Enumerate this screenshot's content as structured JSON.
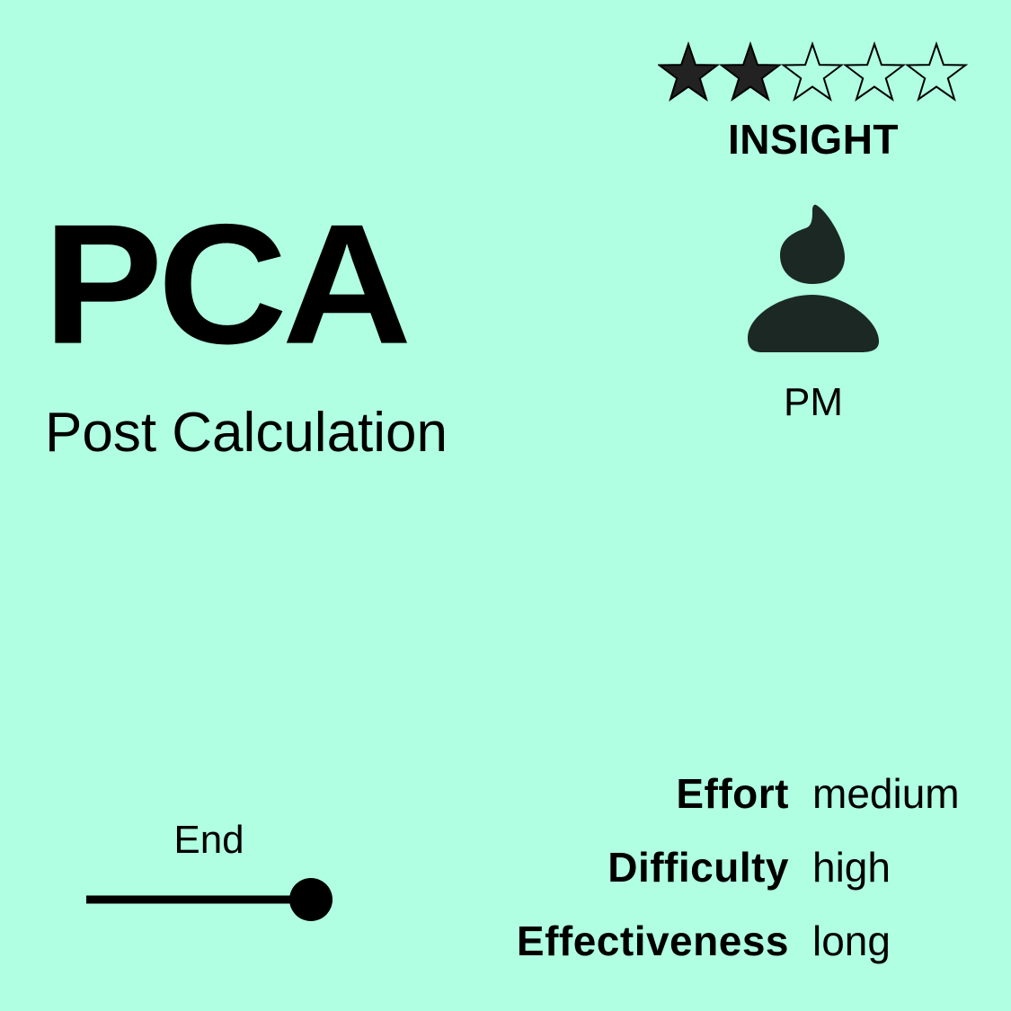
{
  "colors": {
    "background": "#b0ffe3",
    "text": "#000000",
    "icon": "#1c2824"
  },
  "rating": {
    "value": 2,
    "max": 5,
    "icon": "star-icon"
  },
  "category": "INSIGHT",
  "method": {
    "abbreviation": "PCA",
    "full_name": "Post Calculation"
  },
  "role": {
    "icon": "person-icon",
    "label": "PM"
  },
  "phase": {
    "label": "End",
    "position": 1.0
  },
  "attributes": [
    {
      "name": "Effort",
      "value": "medium"
    },
    {
      "name": "Difficulty",
      "value": "high"
    },
    {
      "name": "Effectiveness",
      "value": "long"
    }
  ]
}
